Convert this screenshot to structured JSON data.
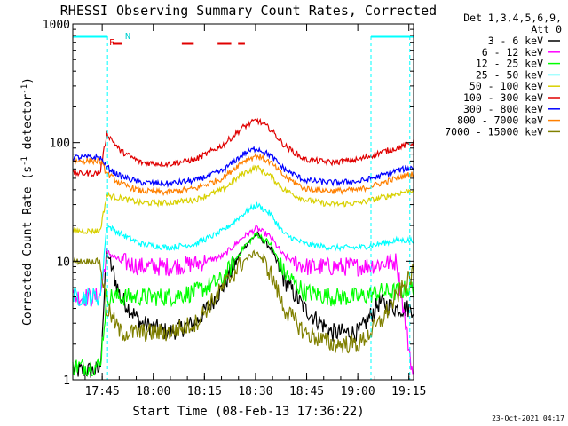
{
  "chart_data": {
    "type": "line",
    "title": "RHESSI Observing Summary Count Rates, Corrected",
    "xlabel": "Start Time (08-Feb-13 17:36:22)",
    "ylabel_main": "Corrected Count Rate (s",
    "ylabel_sup1": "-1",
    "ylabel_mid": " detector",
    "ylabel_sup2": "-1",
    "ylabel_end": ")",
    "yscale": "log",
    "ylim": [
      1,
      1000
    ],
    "x_unit": "minutes since 17:36:22",
    "xlim": [
      0,
      100
    ],
    "xticks": [
      {
        "label": "17:45",
        "x": 8.63
      },
      {
        "label": "18:00",
        "x": 23.63
      },
      {
        "label": "18:15",
        "x": 38.63
      },
      {
        "label": "18:30",
        "x": 53.63
      },
      {
        "label": "18:45",
        "x": 68.63
      },
      {
        "label": "19:00",
        "x": 83.63
      },
      {
        "label": "19:15",
        "x": 98.63
      }
    ],
    "yticks": [
      {
        "label": "1000",
        "v": 1000
      },
      {
        "label": "100",
        "v": 100
      },
      {
        "label": "10",
        "v": 10
      },
      {
        "label": "1",
        "v": 1
      }
    ],
    "legend_position": "top-right",
    "legend_header": [
      "Det 1,3,4,5,6,9,",
      "Att 0"
    ],
    "annotations": {
      "flare_flag": "F",
      "night_flag": "N"
    },
    "x": [
      0,
      8,
      10,
      14,
      20,
      28,
      36,
      44,
      50,
      54,
      58,
      62,
      68,
      76,
      84,
      90,
      95,
      100
    ],
    "series": [
      {
        "name": "3 - 6 keV",
        "color": "#000000",
        "values": [
          1.2,
          1.2,
          12,
          5,
          3,
          2.5,
          3,
          6,
          13,
          17,
          13,
          7,
          4,
          2.5,
          2.5,
          4.5,
          4,
          4
        ]
      },
      {
        "name": "6 - 12 keV",
        "color": "#ff00ff",
        "values": [
          5,
          5,
          12,
          10,
          9,
          9,
          9.5,
          11,
          16,
          19,
          16,
          11,
          9,
          9,
          9,
          9.5,
          10,
          1
        ]
      },
      {
        "name": "12 - 25 keV",
        "color": "#00ff00",
        "values": [
          1.3,
          1.3,
          5,
          5,
          5,
          5,
          5.5,
          7,
          13,
          17,
          14,
          8,
          5.5,
          5,
          5,
          5.5,
          5.5,
          6
        ]
      },
      {
        "name": "25 - 50 keV",
        "color": "#00ffff",
        "values": [
          5,
          5,
          20,
          17,
          14,
          13,
          14,
          18,
          25,
          30,
          25,
          17,
          14,
          13,
          13,
          14,
          15,
          15
        ]
      },
      {
        "name": "50 - 100 keV",
        "color": "#d8d000",
        "values": [
          18,
          18,
          36,
          34,
          31,
          31,
          33,
          40,
          55,
          62,
          52,
          40,
          33,
          30,
          31,
          34,
          37,
          40
        ]
      },
      {
        "name": "100 - 300 keV",
        "color": "#e00000",
        "values": [
          55,
          55,
          120,
          85,
          68,
          66,
          72,
          95,
          135,
          155,
          130,
          95,
          72,
          68,
          72,
          82,
          90,
          100
        ]
      },
      {
        "name": "300 - 800 keV",
        "color": "#0000ff",
        "values": [
          75,
          75,
          62,
          52,
          46,
          45,
          48,
          58,
          80,
          90,
          78,
          60,
          48,
          46,
          47,
          52,
          58,
          62
        ]
      },
      {
        "name": "800 - 7000 keV",
        "color": "#ff8000",
        "values": [
          70,
          70,
          55,
          45,
          39,
          38,
          41,
          50,
          70,
          78,
          68,
          52,
          41,
          39,
          40,
          45,
          50,
          55
        ]
      },
      {
        "name": "7000 - 15000 keV",
        "color": "#808000",
        "values": [
          10,
          10,
          4,
          2.5,
          2.5,
          2.5,
          3,
          6,
          10,
          12,
          8,
          4,
          2.5,
          2,
          2,
          3,
          5,
          8
        ]
      }
    ],
    "attenuator_bands": [
      {
        "color": "#00ffff",
        "from": 0,
        "to": 10.2
      },
      {
        "color": "#00ffff",
        "from": 87.5,
        "to": 100
      }
    ],
    "dashed_markers": [
      {
        "color": "#00ffff",
        "x": 10.2
      },
      {
        "color": "#00ffff",
        "x": 87.5
      },
      {
        "color": "#00ffff",
        "x": 98.9
      }
    ],
    "flare_segments": [
      {
        "from": 11.7,
        "to": 14.5
      },
      {
        "from": 32.0,
        "to": 35.5
      },
      {
        "from": 42.5,
        "to": 46.5
      },
      {
        "from": 48.5,
        "to": 50.5
      }
    ],
    "timestamp": "23-Oct-2021 04:17"
  }
}
